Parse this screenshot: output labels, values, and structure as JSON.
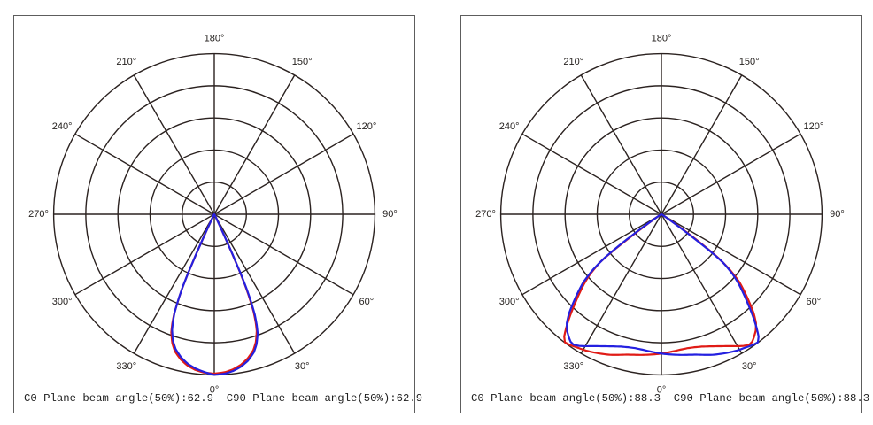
{
  "colors": {
    "background": "#ffffff",
    "panel_border": "#5d5d5d",
    "grid": "#2b2220",
    "label": "#262220",
    "curve_c0": "#e01b16",
    "curve_c90": "#2420e0"
  },
  "chart_data": [
    {
      "type": "polar-line",
      "caption": "C0 Plane beam angle(50%):62.9  C90 Plane beam angle(50%):62.9",
      "beam_angle_50_c0": 62.9,
      "beam_angle_50_c90": 62.9,
      "grid": {
        "rings": 5,
        "radial_step_deg": 30,
        "label_angles": [
          "0°",
          "30°",
          "60°",
          "90°",
          "120°",
          "150°",
          "180°",
          "210°",
          "240°",
          "270°",
          "300°",
          "330°"
        ]
      },
      "series": [
        {
          "name": "C0",
          "color": "#e01b16",
          "points": [
            [
              -90,
              0
            ],
            [
              -45,
              0
            ],
            [
              -32,
              0.006
            ],
            [
              -28,
              0.015
            ],
            [
              -26,
              0.04
            ],
            [
              -25.5,
              0.085
            ],
            [
              -25,
              0.155
            ],
            [
              -24.5,
              0.265
            ],
            [
              -24,
              0.395
            ],
            [
              -23.5,
              0.49
            ],
            [
              -23,
              0.555
            ],
            [
              -22,
              0.664
            ],
            [
              -21,
              0.73
            ],
            [
              -20,
              0.783
            ],
            [
              -18,
              0.845
            ],
            [
              -16,
              0.888
            ],
            [
              -13,
              0.928
            ],
            [
              -10,
              0.957
            ],
            [
              -7,
              0.976
            ],
            [
              -4,
              0.987
            ],
            [
              0,
              0.992
            ],
            [
              4,
              0.985
            ],
            [
              7,
              0.972
            ],
            [
              10,
              0.952
            ],
            [
              13,
              0.922
            ],
            [
              16,
              0.881
            ],
            [
              18,
              0.837
            ],
            [
              20,
              0.773
            ],
            [
              21,
              0.719
            ],
            [
              22,
              0.652
            ],
            [
              23,
              0.545
            ],
            [
              23.5,
              0.478
            ],
            [
              24,
              0.385
            ],
            [
              24.5,
              0.258
            ],
            [
              25,
              0.148
            ],
            [
              25.5,
              0.082
            ],
            [
              26,
              0.038
            ],
            [
              28,
              0.014
            ],
            [
              32,
              0.006
            ],
            [
              45,
              0
            ],
            [
              90,
              0
            ]
          ]
        },
        {
          "name": "C90",
          "color": "#2420e0",
          "points": [
            [
              -90,
              0
            ],
            [
              -45,
              0
            ],
            [
              -32,
              0.007
            ],
            [
              -28,
              0.016
            ],
            [
              -26,
              0.042
            ],
            [
              -25.5,
              0.088
            ],
            [
              -25,
              0.16
            ],
            [
              -24.5,
              0.275
            ],
            [
              -24,
              0.402
            ],
            [
              -23.5,
              0.497
            ],
            [
              -23,
              0.558
            ],
            [
              -22,
              0.66
            ],
            [
              -21,
              0.718
            ],
            [
              -20,
              0.768
            ],
            [
              -18,
              0.83
            ],
            [
              -16,
              0.873
            ],
            [
              -13,
              0.915
            ],
            [
              -10,
              0.946
            ],
            [
              -7,
              0.967
            ],
            [
              -4,
              0.982
            ],
            [
              0,
              1.0
            ],
            [
              4,
              0.994
            ],
            [
              7,
              0.982
            ],
            [
              10,
              0.963
            ],
            [
              13,
              0.935
            ],
            [
              16,
              0.894
            ],
            [
              18,
              0.851
            ],
            [
              20,
              0.79
            ],
            [
              21,
              0.737
            ],
            [
              22,
              0.673
            ],
            [
              23,
              0.57
            ],
            [
              23.5,
              0.503
            ],
            [
              24,
              0.412
            ],
            [
              24.5,
              0.28
            ],
            [
              25,
              0.165
            ],
            [
              25.5,
              0.092
            ],
            [
              26,
              0.044
            ],
            [
              28,
              0.017
            ],
            [
              32,
              0.007
            ],
            [
              45,
              0
            ],
            [
              90,
              0
            ]
          ]
        }
      ]
    },
    {
      "type": "polar-line",
      "caption": "C0 Plane beam angle(50%):88.3  C90 Plane beam angle(50%):88.3",
      "beam_angle_50_c0": 88.3,
      "beam_angle_50_c90": 88.3,
      "grid": {
        "rings": 5,
        "radial_step_deg": 30,
        "label_angles": [
          "0°",
          "30°",
          "60°",
          "90°",
          "120°",
          "150°",
          "180°",
          "210°",
          "240°",
          "270°",
          "300°",
          "330°"
        ]
      },
      "series": [
        {
          "name": "C0",
          "color": "#e01b16",
          "points": [
            [
              -90,
              0
            ],
            [
              -66,
              0.004
            ],
            [
              -60,
              0.01
            ],
            [
              -57,
              0.025
            ],
            [
              -55.5,
              0.06
            ],
            [
              -54.5,
              0.14
            ],
            [
              -53.5,
              0.27
            ],
            [
              -53,
              0.37
            ],
            [
              -52,
              0.485
            ],
            [
              -50,
              0.578
            ],
            [
              -48,
              0.648
            ],
            [
              -46,
              0.71
            ],
            [
              -44,
              0.776
            ],
            [
              -42,
              0.85
            ],
            [
              -40,
              0.922
            ],
            [
              -38.5,
              0.972
            ],
            [
              -37,
              0.998
            ],
            [
              -35,
              0.993
            ],
            [
              -32,
              0.98
            ],
            [
              -29,
              0.97
            ],
            [
              -26,
              0.957
            ],
            [
              -23,
              0.944
            ],
            [
              -20,
              0.931
            ],
            [
              -17,
              0.915
            ],
            [
              -14,
              0.9
            ],
            [
              -11,
              0.891
            ],
            [
              -8,
              0.884
            ],
            [
              -5,
              0.877
            ],
            [
              -2,
              0.871
            ],
            [
              0,
              0.867
            ],
            [
              2,
              0.862
            ],
            [
              5,
              0.856
            ],
            [
              8,
              0.851
            ],
            [
              11,
              0.849
            ],
            [
              14,
              0.853
            ],
            [
              17,
              0.861
            ],
            [
              20,
              0.875
            ],
            [
              23,
              0.892
            ],
            [
              26,
              0.913
            ],
            [
              28,
              0.929
            ],
            [
              30,
              0.948
            ],
            [
              32,
              0.966
            ],
            [
              34,
              0.979
            ],
            [
              35.5,
              0.974
            ],
            [
              37,
              0.958
            ],
            [
              39,
              0.933
            ],
            [
              41,
              0.898
            ],
            [
              43,
              0.843
            ],
            [
              45,
              0.774
            ],
            [
              47,
              0.708
            ],
            [
              49,
              0.643
            ],
            [
              51,
              0.548
            ],
            [
              52.5,
              0.448
            ],
            [
              53.5,
              0.328
            ],
            [
              54.5,
              0.198
            ],
            [
              55.5,
              0.098
            ],
            [
              56.5,
              0.04
            ],
            [
              58,
              0.015
            ],
            [
              62,
              0.006
            ],
            [
              70,
              0
            ],
            [
              90,
              0
            ]
          ]
        },
        {
          "name": "C90",
          "color": "#2420e0",
          "points": [
            [
              -90,
              0
            ],
            [
              -70,
              0
            ],
            [
              -62,
              0.006
            ],
            [
              -58,
              0.015
            ],
            [
              -56.5,
              0.04
            ],
            [
              -55.5,
              0.098
            ],
            [
              -54.5,
              0.198
            ],
            [
              -53.5,
              0.328
            ],
            [
              -52.5,
              0.448
            ],
            [
              -51,
              0.548
            ],
            [
              -49,
              0.643
            ],
            [
              -47,
              0.708
            ],
            [
              -45,
              0.774
            ],
            [
              -43,
              0.843
            ],
            [
              -41,
              0.898
            ],
            [
              -39,
              0.933
            ],
            [
              -37,
              0.958
            ],
            [
              -35.5,
              0.974
            ],
            [
              -34,
              0.979
            ],
            [
              -32,
              0.966
            ],
            [
              -30,
              0.948
            ],
            [
              -28,
              0.929
            ],
            [
              -26,
              0.913
            ],
            [
              -23,
              0.892
            ],
            [
              -20,
              0.875
            ],
            [
              -17,
              0.861
            ],
            [
              -14,
              0.853
            ],
            [
              -11,
              0.849
            ],
            [
              -8,
              0.851
            ],
            [
              -5,
              0.856
            ],
            [
              -2,
              0.862
            ],
            [
              0,
              0.867
            ],
            [
              2,
              0.871
            ],
            [
              5,
              0.877
            ],
            [
              8,
              0.884
            ],
            [
              11,
              0.891
            ],
            [
              14,
              0.9
            ],
            [
              17,
              0.915
            ],
            [
              20,
              0.931
            ],
            [
              23,
              0.944
            ],
            [
              26,
              0.957
            ],
            [
              29,
              0.97
            ],
            [
              32,
              0.98
            ],
            [
              35,
              0.993
            ],
            [
              37,
              0.998
            ],
            [
              38.5,
              0.972
            ],
            [
              40,
              0.922
            ],
            [
              42,
              0.85
            ],
            [
              44,
              0.776
            ],
            [
              46,
              0.71
            ],
            [
              48,
              0.648
            ],
            [
              50,
              0.578
            ],
            [
              52,
              0.485
            ],
            [
              53,
              0.37
            ],
            [
              53.5,
              0.27
            ],
            [
              54.5,
              0.14
            ],
            [
              55.5,
              0.06
            ],
            [
              57,
              0.025
            ],
            [
              60,
              0.01
            ],
            [
              66,
              0.004
            ],
            [
              90,
              0
            ]
          ]
        }
      ]
    }
  ]
}
